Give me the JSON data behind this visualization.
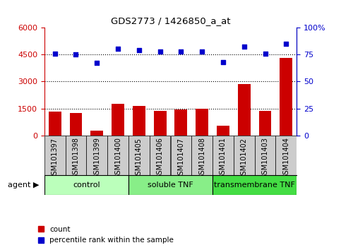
{
  "title": "GDS2773 / 1426850_a_at",
  "categories": [
    "GSM101397",
    "GSM101398",
    "GSM101399",
    "GSM101400",
    "GSM101405",
    "GSM101406",
    "GSM101407",
    "GSM101408",
    "GSM101401",
    "GSM101402",
    "GSM101403",
    "GSM101404"
  ],
  "bar_values": [
    1320,
    1230,
    280,
    1750,
    1650,
    1350,
    1450,
    1480,
    550,
    2850,
    1350,
    4300
  ],
  "scatter_values": [
    76,
    75,
    67,
    80,
    79,
    78,
    78,
    78,
    68,
    82,
    76,
    85
  ],
  "bar_color": "#cc0000",
  "scatter_color": "#0000cc",
  "left_ylim": [
    0,
    6000
  ],
  "right_ylim": [
    0,
    100
  ],
  "left_yticks": [
    0,
    1500,
    3000,
    4500,
    6000
  ],
  "right_yticks": [
    0,
    25,
    50,
    75,
    100
  ],
  "right_yticklabels": [
    "0",
    "25",
    "50",
    "75",
    "100%"
  ],
  "grid_values": [
    1500,
    3000,
    4500
  ],
  "groups": [
    {
      "label": "control",
      "start": 0,
      "end": 4,
      "color": "#bbffbb"
    },
    {
      "label": "soluble TNF",
      "start": 4,
      "end": 8,
      "color": "#88ee88"
    },
    {
      "label": "transmembrane TNF",
      "start": 8,
      "end": 12,
      "color": "#44dd44"
    }
  ],
  "agent_label": "agent",
  "legend_count_label": "count",
  "legend_pct_label": "percentile rank within the sample",
  "background_color": "#ffffff",
  "col_bg_color": "#cccccc",
  "group_border_color": "#000000"
}
